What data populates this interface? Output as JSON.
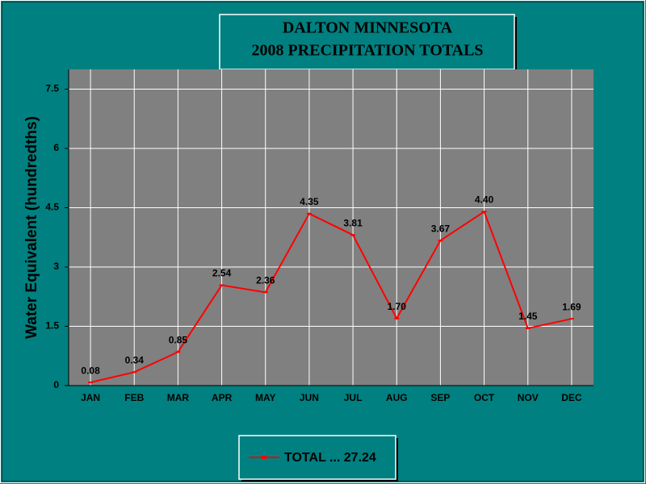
{
  "chart_data": {
    "type": "line",
    "title": [
      "DALTON MINNESOTA",
      "2008 PRECIPITATION TOTALS"
    ],
    "y_label": "Water Equivalent (hundredths)",
    "categories": [
      "JAN",
      "FEB",
      "MAR",
      "APR",
      "MAY",
      "JUN",
      "JUL",
      "AUG",
      "SEP",
      "OCT",
      "NOV",
      "DEC"
    ],
    "series": [
      {
        "name": "TOTAL ... 27.24",
        "color": "#ff0000",
        "values": [
          0.08,
          0.34,
          0.85,
          2.54,
          2.36,
          4.35,
          3.81,
          1.7,
          3.67,
          4.4,
          1.45,
          1.69
        ],
        "value_labels": [
          "0.08",
          "0.34",
          "0.85",
          "2.54",
          "2.36",
          "4.35",
          "3.81",
          "1.70",
          "3.67",
          "4.40",
          "1.45",
          "1.69"
        ]
      }
    ],
    "ylim": [
      0,
      8
    ],
    "yticks": [
      0,
      1.5,
      3,
      4.5,
      6,
      7.5
    ],
    "grid": true
  }
}
